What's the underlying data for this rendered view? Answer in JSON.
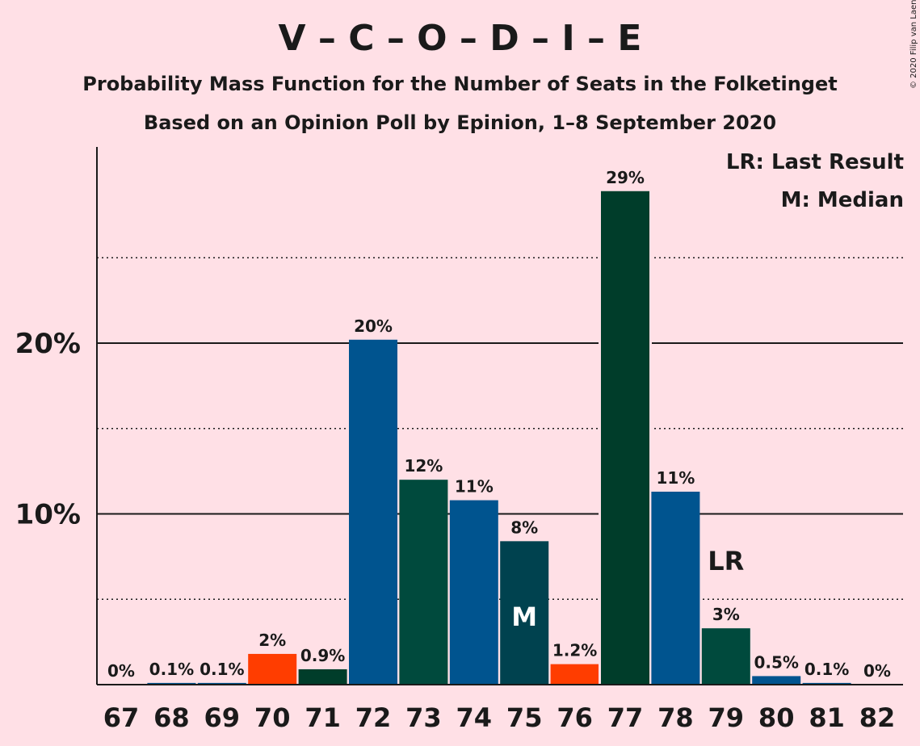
{
  "title": "V – C – O – D – I – E",
  "subtitle": "Probability Mass Function for the Number of Seats in the Folketinget",
  "subtitle2": "Based on an Opinion Poll by Epinion, 1–8 September 2020",
  "copyright": "© 2020 Filip van Laenen",
  "legend": {
    "lr": "LR: Last Result",
    "m": "M: Median"
  },
  "colors": {
    "background": "#ffe0e6",
    "blue": "#00548f",
    "teal": "#004a3d",
    "darkgreen": "#003d2a",
    "petrol": "#00424f",
    "orange": "#ff3d00"
  },
  "chart_data": {
    "type": "bar",
    "categories": [
      "67",
      "68",
      "69",
      "70",
      "71",
      "72",
      "73",
      "74",
      "75",
      "76",
      "77",
      "78",
      "79",
      "80",
      "81",
      "82"
    ],
    "values": [
      0,
      0.1,
      0.1,
      1.8,
      0.9,
      20.2,
      12.0,
      10.8,
      8.4,
      1.2,
      28.9,
      11.3,
      3.3,
      0.5,
      0.1,
      0
    ],
    "value_labels": [
      "0%",
      "0.1%",
      "0.1%",
      "2%",
      "0.9%",
      "20%",
      "12%",
      "11%",
      "8%",
      "1.2%",
      "29%",
      "11%",
      "3%",
      "0.5%",
      "0.1%",
      "0%"
    ],
    "bar_colors": [
      "#00548f",
      "#00548f",
      "#00548f",
      "#ff3d00",
      "#003d2a",
      "#00548f",
      "#004a3d",
      "#00548f",
      "#00424f",
      "#ff3d00",
      "#003d2a",
      "#00548f",
      "#004a3d",
      "#00548f",
      "#00548f",
      "#00548f"
    ],
    "ylim": [
      0,
      30
    ],
    "yticks": [
      {
        "v": 10,
        "label": "10%"
      },
      {
        "v": 20,
        "label": "20%"
      }
    ],
    "minor_gridlines": [
      5,
      15,
      25
    ],
    "median_category": "75",
    "median_marker": "M",
    "last_result_category": "79",
    "last_result_marker": "LR",
    "xlabel": "",
    "ylabel": ""
  }
}
